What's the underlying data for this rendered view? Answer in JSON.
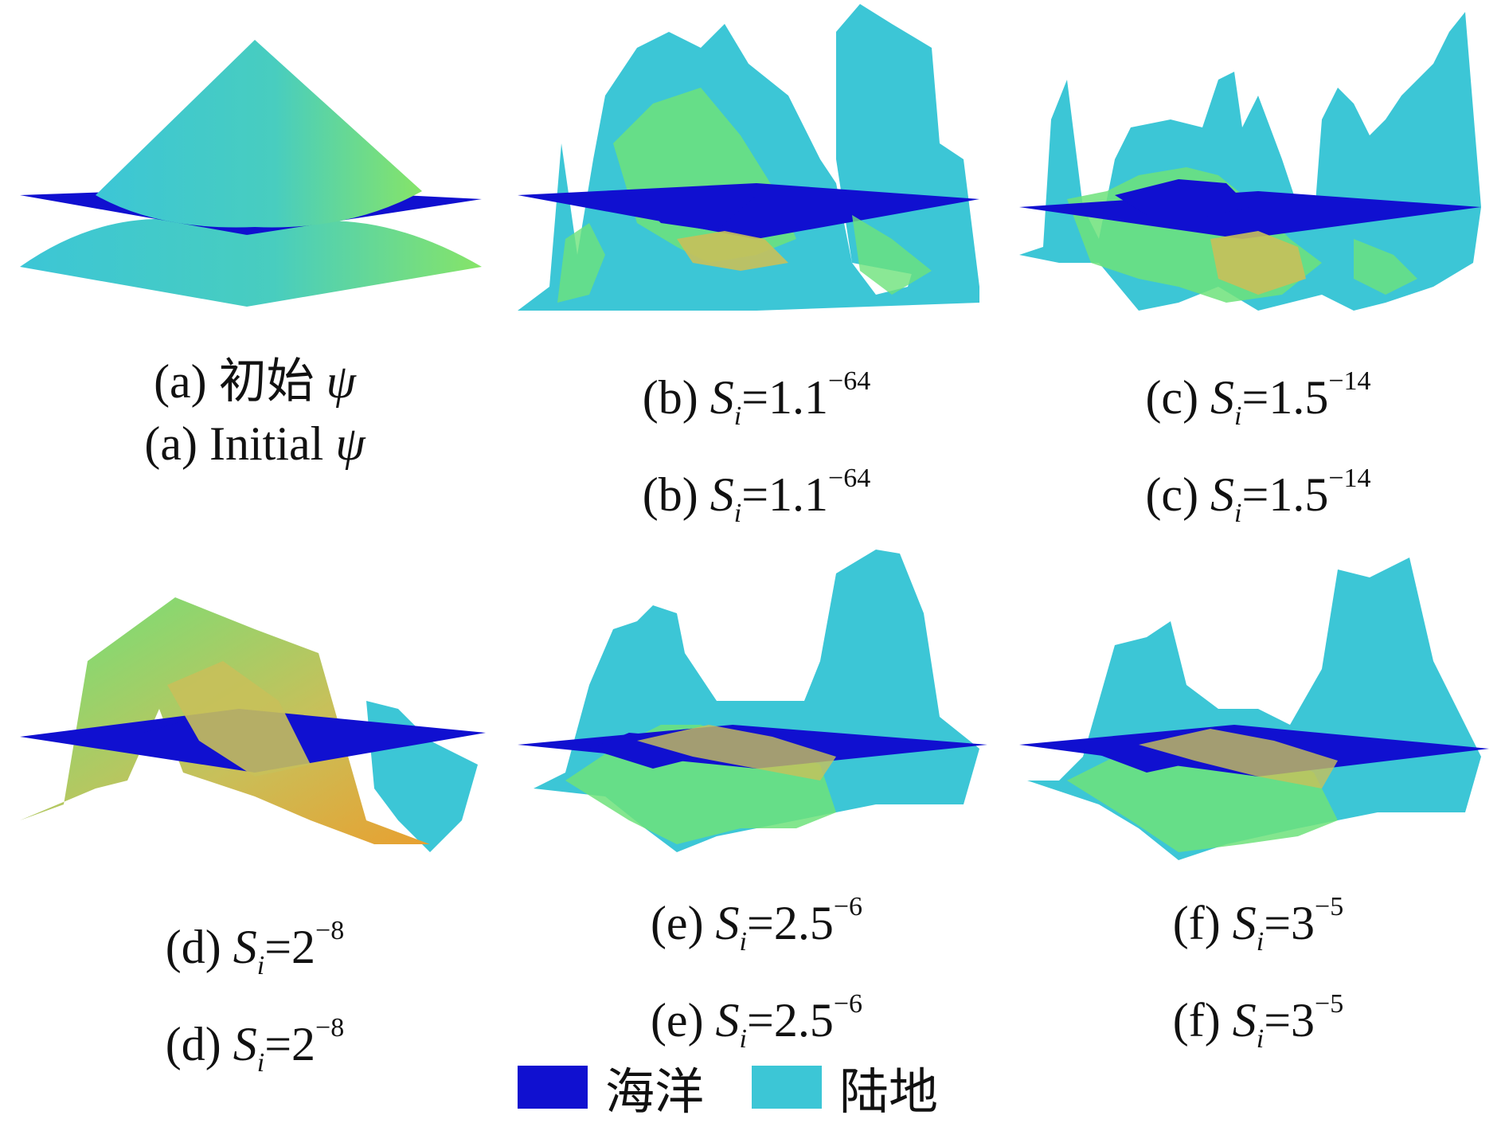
{
  "panels": [
    {
      "id": "a",
      "cap1": [
        "(a) 初始 ",
        "ψ"
      ],
      "cap2": [
        "(a) Initial ",
        "ψ"
      ],
      "type": "initial"
    },
    {
      "id": "b",
      "prefix": "(b) ",
      "value": "=1.1",
      "exp": "−64",
      "type": "rough"
    },
    {
      "id": "c",
      "prefix": "(c) ",
      "value": "=1.5",
      "exp": "−14",
      "type": "rough2"
    },
    {
      "id": "d",
      "prefix": "(d) ",
      "value": "=2",
      "exp": "−8",
      "type": "fold"
    },
    {
      "id": "e",
      "prefix": "(e) ",
      "value": "=2.5",
      "exp": "−6",
      "type": "twin"
    },
    {
      "id": "f",
      "prefix": "(f) ",
      "value": "=3",
      "exp": "−5",
      "type": "twin2"
    }
  ],
  "symbol": "S",
  "subscript": "i",
  "legend": [
    {
      "label": "海洋",
      "color": "#1010d0"
    },
    {
      "label": "陆地",
      "color": "#3cc6d6"
    }
  ],
  "colors": {
    "ocean": "#1010d0",
    "land": "#3cc6d6",
    "green": "#6de27a",
    "yellow": "#c8c05a",
    "orange": "#e8a030"
  }
}
